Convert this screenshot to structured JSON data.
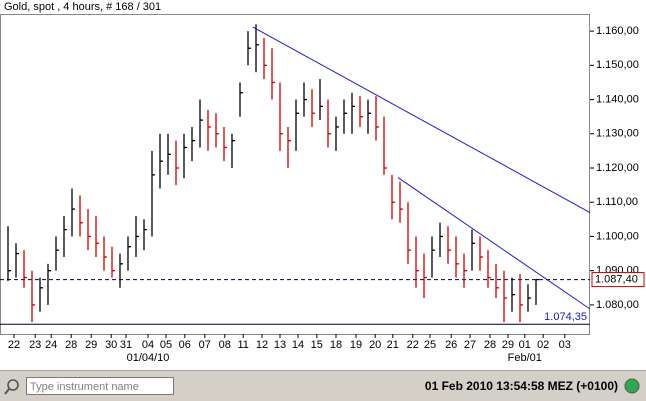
{
  "chart_data": {
    "type": "hlc",
    "title": "Gold, spot , 4 hours, # 168 / 301",
    "lows": [
      1.087,
      1.088,
      1.085,
      1.075,
      1.078,
      1.08,
      1.09,
      1.094,
      1.1,
      1.1,
      1.096,
      1.094,
      1.09,
      1.088,
      1.085,
      1.09,
      1.094,
      1.096,
      1.1,
      1.114,
      1.118,
      1.115,
      1.117,
      1.122,
      1.126,
      1.125,
      1.126,
      1.122,
      1.12,
      1.135,
      1.15,
      1.148,
      1.146,
      1.14,
      1.125,
      1.12,
      1.125,
      1.135,
      1.132,
      1.134,
      1.126,
      1.125,
      1.13,
      1.13,
      1.132,
      1.13,
      1.128,
      1.118,
      1.105,
      1.104,
      1.092,
      1.085,
      1.082,
      1.088,
      1.094,
      1.092,
      1.088,
      1.085,
      1.09,
      1.09,
      1.085,
      1.082,
      1.075,
      1.078,
      1.075,
      1.078,
      1.08
    ],
    "highs": [
      1.103,
      1.098,
      1.096,
      1.09,
      1.088,
      1.092,
      1.1,
      1.106,
      1.114,
      1.112,
      1.108,
      1.106,
      1.1,
      1.097,
      1.095,
      1.1,
      1.106,
      1.105,
      1.125,
      1.13,
      1.13,
      1.128,
      1.13,
      1.132,
      1.14,
      1.137,
      1.136,
      1.132,
      1.13,
      1.145,
      1.16,
      1.162,
      1.158,
      1.155,
      1.145,
      1.132,
      1.14,
      1.145,
      1.143,
      1.146,
      1.14,
      1.135,
      1.14,
      1.142,
      1.141,
      1.14,
      1.141,
      1.135,
      1.118,
      1.116,
      1.11,
      1.1,
      1.095,
      1.1,
      1.104,
      1.103,
      1.1,
      1.095,
      1.102,
      1.1,
      1.096,
      1.092,
      1.09,
      1.088,
      1.089,
      1.086,
      1.0874
    ],
    "closes": [
      1.09,
      1.095,
      1.088,
      1.08,
      1.085,
      1.09,
      1.096,
      1.102,
      1.108,
      1.104,
      1.1,
      1.098,
      1.094,
      1.09,
      1.092,
      1.097,
      1.1,
      1.102,
      1.118,
      1.122,
      1.124,
      1.12,
      1.126,
      1.128,
      1.134,
      1.132,
      1.13,
      1.126,
      1.128,
      1.142,
      1.155,
      1.156,
      1.15,
      1.145,
      1.13,
      1.128,
      1.136,
      1.14,
      1.136,
      1.138,
      1.13,
      1.132,
      1.136,
      1.138,
      1.135,
      1.136,
      1.132,
      1.12,
      1.11,
      1.108,
      1.096,
      1.09,
      1.088,
      1.096,
      1.1,
      1.096,
      1.092,
      1.09,
      1.098,
      1.094,
      1.088,
      1.085,
      1.082,
      1.083,
      1.08,
      1.082,
      1.0874
    ],
    "color": "#000000",
    "down_color": "#cc0000",
    "xlim": [
      -1,
      72.75
    ],
    "xticks": [
      {
        "value": 0.75,
        "label": "22"
      },
      {
        "value": 3.4,
        "label": "23"
      },
      {
        "value": 5.4,
        "label": "24"
      },
      {
        "value": 7.9,
        "label": "28"
      },
      {
        "value": 10.4,
        "label": "29"
      },
      {
        "value": 12.9,
        "label": "30"
      },
      {
        "value": 14.75,
        "label": "31"
      },
      {
        "value": 17.5,
        "label": "04"
      },
      {
        "value": 19.75,
        "label": "05"
      },
      {
        "value": 22.1,
        "label": "06"
      },
      {
        "value": 24.6,
        "label": "07"
      },
      {
        "value": 27.1,
        "label": "08"
      },
      {
        "value": 29.4,
        "label": "11"
      },
      {
        "value": 31.75,
        "label": "12"
      },
      {
        "value": 34,
        "label": "13"
      },
      {
        "value": 36.25,
        "label": "14"
      },
      {
        "value": 38.6,
        "label": "15"
      },
      {
        "value": 41,
        "label": "18"
      },
      {
        "value": 43.5,
        "label": "19"
      },
      {
        "value": 45.9,
        "label": "20"
      },
      {
        "value": 48.1,
        "label": "21"
      },
      {
        "value": 50.6,
        "label": "22"
      },
      {
        "value": 52.75,
        "label": "25"
      },
      {
        "value": 55.4,
        "label": "26"
      },
      {
        "value": 57.75,
        "label": "27"
      },
      {
        "value": 60.25,
        "label": "28"
      },
      {
        "value": 62.5,
        "label": "29"
      },
      {
        "value": 64.6,
        "label": "01"
      },
      {
        "value": 66.9,
        "label": "02"
      },
      {
        "value": 69.6,
        "label": "03"
      }
    ],
    "xsublabels": [
      {
        "value": 17.5,
        "label": "01/04/10"
      },
      {
        "value": 64.6,
        "label": "Feb/01"
      }
    ],
    "ylim": [
      1.0715,
      1.165
    ],
    "yticks": [
      {
        "value": 1.08,
        "label": "1.080,00"
      },
      {
        "value": 1.09,
        "label": "1.090,00"
      },
      {
        "value": 1.1,
        "label": "1.100,00"
      },
      {
        "value": 1.11,
        "label": "1.110,00"
      },
      {
        "value": 1.12,
        "label": "1.120,00"
      },
      {
        "value": 1.13,
        "label": "1.130,00"
      },
      {
        "value": 1.14,
        "label": "1.140,00"
      },
      {
        "value": 1.15,
        "label": "1.150,00"
      },
      {
        "value": 1.16,
        "label": "1.160,00"
      }
    ],
    "trend_lines": [
      {
        "x": [
          30.6,
          72.75
        ],
        "y": [
          1.1612,
          1.107
        ],
        "color": "#1a1acc"
      },
      {
        "x": [
          48.75,
          72.75
        ],
        "y": [
          1.1172,
          1.0788
        ],
        "color": "#1a1acc"
      }
    ],
    "price_lines": [
      {
        "value": 1.0874,
        "label": "1.087,40",
        "style": "dashed",
        "color": "#000033",
        "label_color": "#cc0000"
      },
      {
        "value": 1.07435,
        "label": "1.074,35",
        "style": "solid",
        "color": "#000033",
        "label_color": "#1a1acc"
      }
    ]
  },
  "toolbar": {
    "search_placeholder": "Type instrument name",
    "timestamp": "01 Feb 2010 13:54:58 MEZ (+0100)"
  }
}
